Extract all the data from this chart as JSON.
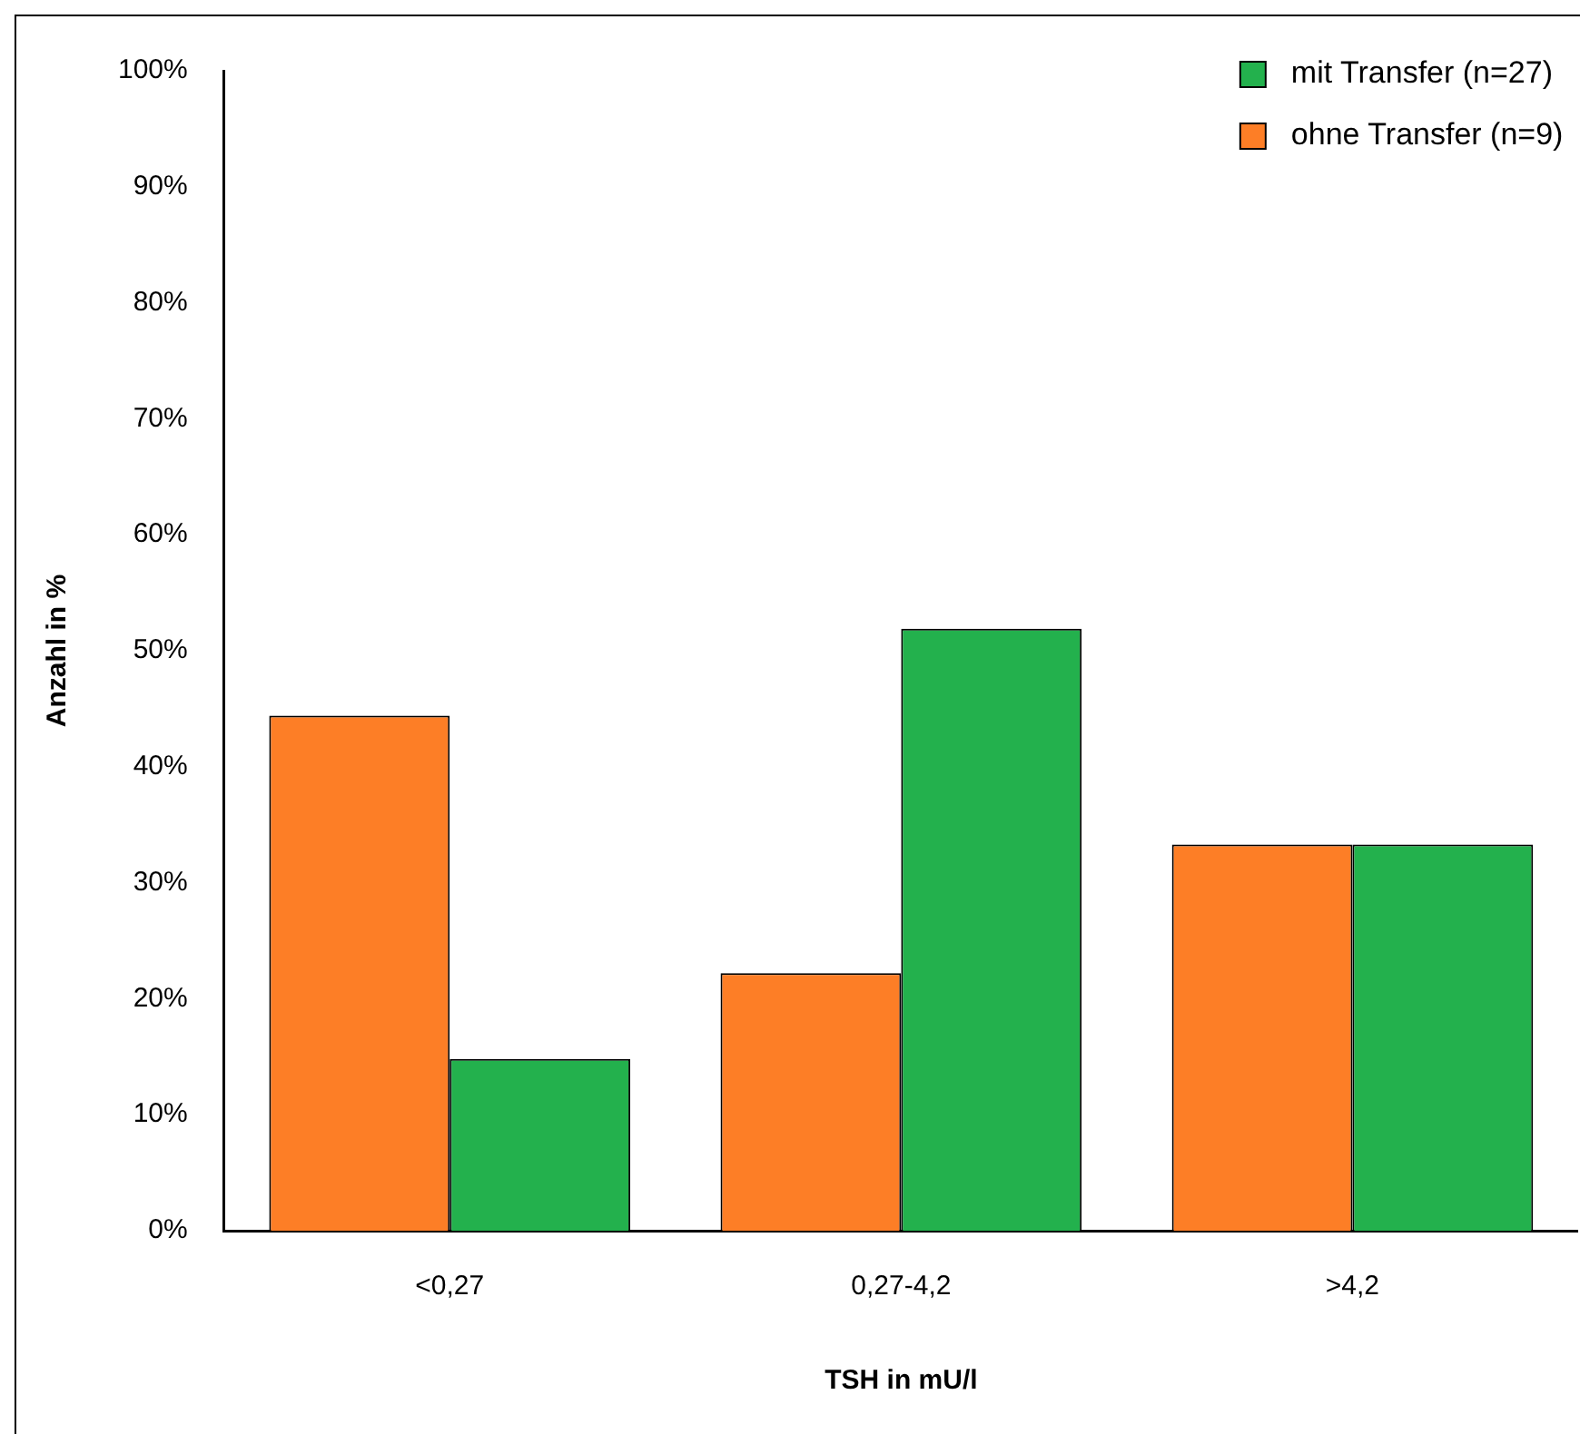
{
  "chart_data": {
    "type": "bar",
    "xlabel": "TSH in mU/l",
    "ylabel": "Anzahl in %",
    "categories": [
      "<0,27",
      "0,27-4,2",
      ">4,2"
    ],
    "series": [
      {
        "name": "ohne Transfer (n=9)",
        "color": "#fd7e26",
        "values": [
          44.4,
          22.2,
          33.3
        ]
      },
      {
        "name": "mit Transfer (n=27)",
        "color": "#23b14d",
        "values": [
          14.8,
          51.9,
          33.3
        ]
      }
    ],
    "ylim": [
      0,
      100
    ],
    "yticks": [
      {
        "value": 0,
        "label": "0%"
      },
      {
        "value": 10,
        "label": "10%"
      },
      {
        "value": 20,
        "label": "20%"
      },
      {
        "value": 30,
        "label": "30%"
      },
      {
        "value": 40,
        "label": "40%"
      },
      {
        "value": 50,
        "label": "50%"
      },
      {
        "value": 60,
        "label": "60%"
      },
      {
        "value": 70,
        "label": "70%"
      },
      {
        "value": 80,
        "label": "80%"
      },
      {
        "value": 90,
        "label": "90%"
      },
      {
        "value": 100,
        "label": "100%"
      }
    ],
    "grid": false,
    "legend": "top right"
  }
}
